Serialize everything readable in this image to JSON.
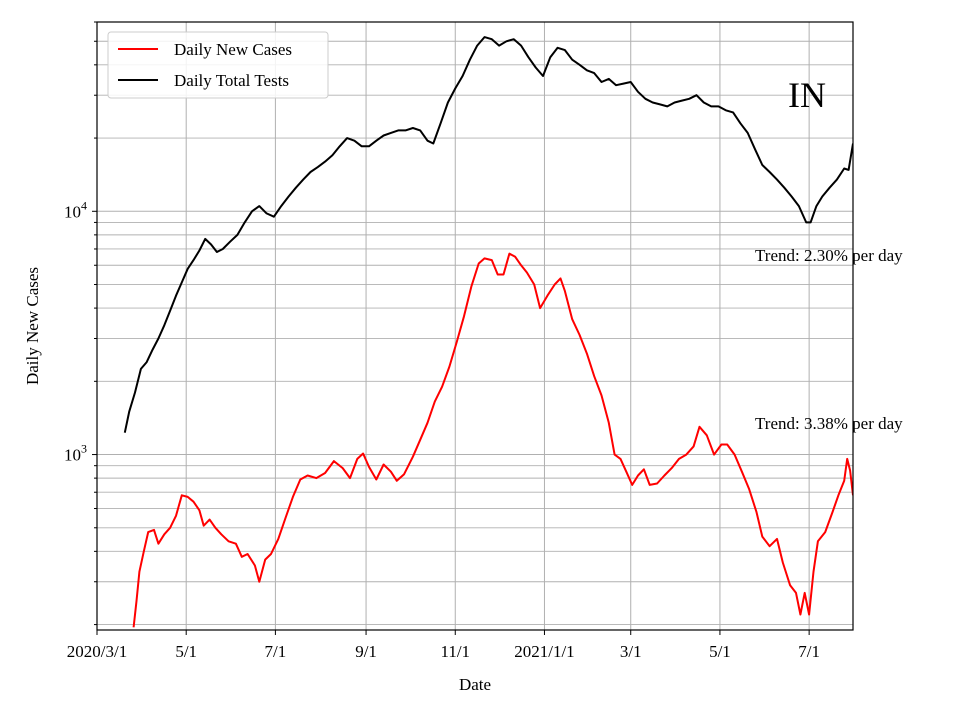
{
  "chart_data": {
    "type": "line",
    "xlabel": "Date",
    "ylabel": "Daily New Cases",
    "yscale": "log",
    "ylim": [
      190,
      60000
    ],
    "xlim": [
      "2020-03-01",
      "2021-07-31"
    ],
    "x_ticks": [
      {
        "date": "2020-03-01",
        "label": "2020/3/1"
      },
      {
        "date": "2020-05-01",
        "label": "5/1"
      },
      {
        "date": "2020-07-01",
        "label": "7/1"
      },
      {
        "date": "2020-09-01",
        "label": "9/1"
      },
      {
        "date": "2020-11-01",
        "label": "11/1"
      },
      {
        "date": "2021-01-01",
        "label": "2021/1/1"
      },
      {
        "date": "2021-03-01",
        "label": "3/1"
      },
      {
        "date": "2021-05-01",
        "label": "5/1"
      },
      {
        "date": "2021-07-01",
        "label": "7/1"
      }
    ],
    "y_ticks": [
      {
        "value": 1000,
        "base": "10",
        "exp": "3"
      },
      {
        "value": 10000,
        "base": "10",
        "exp": "4"
      }
    ],
    "grid": true,
    "legend_position": "top-left",
    "annotation": "IN",
    "trend_labels": [
      {
        "text": "Trend: 2.30% per day",
        "anchor_date": "2021-05-25",
        "anchor_value": 6600
      },
      {
        "text": "Trend: 3.38% per day",
        "anchor_date": "2021-05-25",
        "anchor_value": 1350
      }
    ],
    "series": [
      {
        "name": "Daily New Cases",
        "color": "#ff0000",
        "points": [
          [
            "2020-03-26",
            195
          ],
          [
            "2020-03-28",
            250
          ],
          [
            "2020-03-30",
            330
          ],
          [
            "2020-04-02",
            400
          ],
          [
            "2020-04-05",
            480
          ],
          [
            "2020-04-09",
            490
          ],
          [
            "2020-04-12",
            430
          ],
          [
            "2020-04-16",
            470
          ],
          [
            "2020-04-20",
            500
          ],
          [
            "2020-04-24",
            560
          ],
          [
            "2020-04-28",
            680
          ],
          [
            "2020-05-02",
            670
          ],
          [
            "2020-05-06",
            640
          ],
          [
            "2020-05-10",
            590
          ],
          [
            "2020-05-13",
            510
          ],
          [
            "2020-05-17",
            540
          ],
          [
            "2020-05-21",
            500
          ],
          [
            "2020-05-25",
            470
          ],
          [
            "2020-05-30",
            440
          ],
          [
            "2020-06-04",
            430
          ],
          [
            "2020-06-08",
            380
          ],
          [
            "2020-06-12",
            390
          ],
          [
            "2020-06-17",
            350
          ],
          [
            "2020-06-20",
            300
          ],
          [
            "2020-06-24",
            370
          ],
          [
            "2020-06-28",
            390
          ],
          [
            "2020-07-03",
            450
          ],
          [
            "2020-07-08",
            550
          ],
          [
            "2020-07-13",
            670
          ],
          [
            "2020-07-18",
            790
          ],
          [
            "2020-07-23",
            820
          ],
          [
            "2020-07-29",
            800
          ],
          [
            "2020-08-04",
            840
          ],
          [
            "2020-08-10",
            940
          ],
          [
            "2020-08-16",
            880
          ],
          [
            "2020-08-21",
            800
          ],
          [
            "2020-08-26",
            960
          ],
          [
            "2020-08-30",
            1010
          ],
          [
            "2020-09-03",
            890
          ],
          [
            "2020-09-08",
            790
          ],
          [
            "2020-09-13",
            910
          ],
          [
            "2020-09-18",
            850
          ],
          [
            "2020-09-22",
            780
          ],
          [
            "2020-09-27",
            830
          ],
          [
            "2020-10-03",
            980
          ],
          [
            "2020-10-08",
            1150
          ],
          [
            "2020-10-13",
            1350
          ],
          [
            "2020-10-18",
            1650
          ],
          [
            "2020-10-23",
            1900
          ],
          [
            "2020-10-28",
            2300
          ],
          [
            "2020-11-02",
            2900
          ],
          [
            "2020-11-07",
            3700
          ],
          [
            "2020-11-12",
            4900
          ],
          [
            "2020-11-17",
            6100
          ],
          [
            "2020-11-21",
            6400
          ],
          [
            "2020-11-26",
            6300
          ],
          [
            "2020-11-30",
            5500
          ],
          [
            "2020-12-04",
            5500
          ],
          [
            "2020-12-08",
            6700
          ],
          [
            "2020-12-12",
            6500
          ],
          [
            "2020-12-16",
            6000
          ],
          [
            "2020-12-20",
            5600
          ],
          [
            "2020-12-25",
            5000
          ],
          [
            "2020-12-29",
            4000
          ],
          [
            "2021-01-03",
            4500
          ],
          [
            "2021-01-08",
            5000
          ],
          [
            "2021-01-12",
            5300
          ],
          [
            "2021-01-15",
            4700
          ],
          [
            "2021-01-20",
            3600
          ],
          [
            "2021-01-25",
            3100
          ],
          [
            "2021-01-30",
            2600
          ],
          [
            "2021-02-04",
            2100
          ],
          [
            "2021-02-09",
            1750
          ],
          [
            "2021-02-14",
            1350
          ],
          [
            "2021-02-18",
            1000
          ],
          [
            "2021-02-22",
            960
          ],
          [
            "2021-02-26",
            850
          ],
          [
            "2021-03-02",
            750
          ],
          [
            "2021-03-06",
            820
          ],
          [
            "2021-03-10",
            870
          ],
          [
            "2021-03-14",
            750
          ],
          [
            "2021-03-19",
            760
          ],
          [
            "2021-03-24",
            820
          ],
          [
            "2021-03-29",
            880
          ],
          [
            "2021-04-03",
            960
          ],
          [
            "2021-04-08",
            1000
          ],
          [
            "2021-04-13",
            1080
          ],
          [
            "2021-04-17",
            1300
          ],
          [
            "2021-04-22",
            1200
          ],
          [
            "2021-04-27",
            1000
          ],
          [
            "2021-05-02",
            1100
          ],
          [
            "2021-05-06",
            1100
          ],
          [
            "2021-05-11",
            1000
          ],
          [
            "2021-05-16",
            850
          ],
          [
            "2021-05-21",
            720
          ],
          [
            "2021-05-26",
            580
          ],
          [
            "2021-05-30",
            460
          ],
          [
            "2021-06-04",
            420
          ],
          [
            "2021-06-09",
            450
          ],
          [
            "2021-06-13",
            360
          ],
          [
            "2021-06-18",
            290
          ],
          [
            "2021-06-22",
            270
          ],
          [
            "2021-06-25",
            220
          ],
          [
            "2021-06-28",
            270
          ],
          [
            "2021-07-01",
            220
          ],
          [
            "2021-07-04",
            330
          ],
          [
            "2021-07-07",
            440
          ],
          [
            "2021-07-12",
            480
          ],
          [
            "2021-07-17",
            580
          ],
          [
            "2021-07-21",
            680
          ],
          [
            "2021-07-25",
            780
          ],
          [
            "2021-07-27",
            960
          ],
          [
            "2021-07-29",
            860
          ],
          [
            "2021-07-31",
            680
          ]
        ]
      },
      {
        "name": "Daily Total Tests",
        "color": "#000000",
        "points": [
          [
            "2020-03-20",
            1230
          ],
          [
            "2020-03-23",
            1500
          ],
          [
            "2020-03-27",
            1800
          ],
          [
            "2020-03-31",
            2250
          ],
          [
            "2020-04-04",
            2400
          ],
          [
            "2020-04-08",
            2700
          ],
          [
            "2020-04-12",
            3000
          ],
          [
            "2020-04-16",
            3400
          ],
          [
            "2020-04-20",
            3900
          ],
          [
            "2020-04-24",
            4500
          ],
          [
            "2020-04-28",
            5100
          ],
          [
            "2020-05-02",
            5800
          ],
          [
            "2020-05-06",
            6300
          ],
          [
            "2020-05-10",
            6900
          ],
          [
            "2020-05-14",
            7700
          ],
          [
            "2020-05-18",
            7300
          ],
          [
            "2020-05-22",
            6800
          ],
          [
            "2020-05-26",
            7000
          ],
          [
            "2020-05-31",
            7500
          ],
          [
            "2020-06-05",
            8000
          ],
          [
            "2020-06-10",
            9000
          ],
          [
            "2020-06-15",
            10000
          ],
          [
            "2020-06-20",
            10500
          ],
          [
            "2020-06-25",
            9800
          ],
          [
            "2020-06-30",
            9500
          ],
          [
            "2020-07-05",
            10500
          ],
          [
            "2020-07-10",
            11500
          ],
          [
            "2020-07-15",
            12500
          ],
          [
            "2020-07-20",
            13500
          ],
          [
            "2020-07-25",
            14500
          ],
          [
            "2020-07-30",
            15200
          ],
          [
            "2020-08-04",
            16000
          ],
          [
            "2020-08-09",
            17000
          ],
          [
            "2020-08-14",
            18500
          ],
          [
            "2020-08-19",
            20000
          ],
          [
            "2020-08-24",
            19500
          ],
          [
            "2020-08-29",
            18500
          ],
          [
            "2020-09-03",
            18500
          ],
          [
            "2020-09-08",
            19500
          ],
          [
            "2020-09-13",
            20500
          ],
          [
            "2020-09-18",
            21000
          ],
          [
            "2020-09-23",
            21500
          ],
          [
            "2020-09-28",
            21500
          ],
          [
            "2020-10-03",
            22000
          ],
          [
            "2020-10-08",
            21500
          ],
          [
            "2020-10-13",
            19500
          ],
          [
            "2020-10-17",
            19000
          ],
          [
            "2020-10-22",
            23000
          ],
          [
            "2020-10-27",
            28000
          ],
          [
            "2020-11-01",
            32000
          ],
          [
            "2020-11-06",
            36000
          ],
          [
            "2020-11-11",
            42000
          ],
          [
            "2020-11-16",
            48000
          ],
          [
            "2020-11-21",
            52000
          ],
          [
            "2020-11-26",
            51000
          ],
          [
            "2020-12-01",
            48000
          ],
          [
            "2020-12-06",
            50000
          ],
          [
            "2020-12-11",
            51000
          ],
          [
            "2020-12-16",
            48000
          ],
          [
            "2020-12-21",
            43000
          ],
          [
            "2020-12-26",
            39000
          ],
          [
            "2020-12-31",
            36000
          ],
          [
            "2021-01-05",
            43000
          ],
          [
            "2021-01-10",
            47000
          ],
          [
            "2021-01-15",
            46000
          ],
          [
            "2021-01-20",
            42000
          ],
          [
            "2021-01-25",
            40000
          ],
          [
            "2021-01-30",
            38000
          ],
          [
            "2021-02-04",
            37000
          ],
          [
            "2021-02-09",
            34000
          ],
          [
            "2021-02-14",
            35000
          ],
          [
            "2021-02-19",
            33000
          ],
          [
            "2021-02-24",
            33500
          ],
          [
            "2021-03-01",
            34000
          ],
          [
            "2021-03-06",
            31000
          ],
          [
            "2021-03-11",
            29000
          ],
          [
            "2021-03-16",
            28000
          ],
          [
            "2021-03-21",
            27500
          ],
          [
            "2021-03-26",
            27000
          ],
          [
            "2021-03-31",
            28000
          ],
          [
            "2021-04-05",
            28500
          ],
          [
            "2021-04-10",
            29000
          ],
          [
            "2021-04-15",
            30000
          ],
          [
            "2021-04-20",
            28000
          ],
          [
            "2021-04-25",
            27000
          ],
          [
            "2021-04-30",
            27000
          ],
          [
            "2021-05-05",
            26000
          ],
          [
            "2021-05-10",
            25500
          ],
          [
            "2021-05-15",
            23000
          ],
          [
            "2021-05-20",
            21000
          ],
          [
            "2021-05-25",
            18000
          ],
          [
            "2021-05-30",
            15500
          ],
          [
            "2021-06-04",
            14500
          ],
          [
            "2021-06-09",
            13500
          ],
          [
            "2021-06-14",
            12500
          ],
          [
            "2021-06-19",
            11500
          ],
          [
            "2021-06-24",
            10500
          ],
          [
            "2021-06-29",
            9000
          ],
          [
            "2021-07-02",
            9000
          ],
          [
            "2021-07-06",
            10500
          ],
          [
            "2021-07-10",
            11500
          ],
          [
            "2021-07-15",
            12500
          ],
          [
            "2021-07-20",
            13500
          ],
          [
            "2021-07-25",
            15000
          ],
          [
            "2021-07-28",
            14800
          ],
          [
            "2021-07-31",
            19000
          ]
        ]
      }
    ]
  }
}
